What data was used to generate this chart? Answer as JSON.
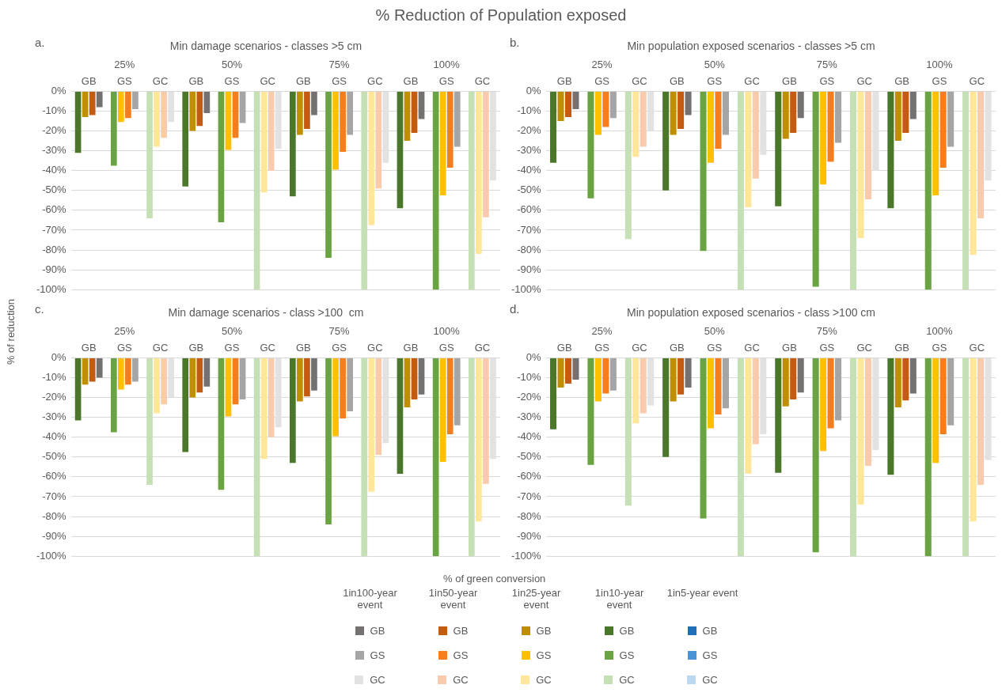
{
  "chart_data": [
    {
      "type": "bar",
      "title": "% Reduction of Population exposed",
      "subtitle": "Min damage scenarios - classes >5 cm",
      "ylabel": "% of reduction",
      "legend": "bottom",
      "grid": "y",
      "annotations": [
        "a.",
        "25%",
        "50%",
        "75%",
        "100%",
        "1in100-year event",
        "1in50-year event",
        "1in25-year event",
        "1in10-year event",
        "1in5-year event"
      ],
      "categories": [
        "GB",
        "GS",
        "GC",
        "GB",
        "GS",
        "GC",
        "GB",
        "GS",
        "GC",
        "GB",
        "GS",
        "GC"
      ],
      "ylim": [
        -100,
        0
      ],
      "yticks": [
        {
          "value": 0,
          "label": "0%"
        },
        {
          "value": -10,
          "label": "-10%"
        },
        {
          "value": -20,
          "label": "-20%"
        },
        {
          "value": -30,
          "label": "-30%"
        },
        {
          "value": -40,
          "label": "-40%"
        },
        {
          "value": -50,
          "label": "-50%"
        },
        {
          "value": -60,
          "label": "-60%"
        },
        {
          "value": -70,
          "label": "-70%"
        },
        {
          "value": -80,
          "label": "-80%"
        },
        {
          "value": -90,
          "label": "-90%"
        },
        {
          "value": -100,
          "label": "-100%"
        }
      ],
      "series": [
        {
          "name": "GB",
          "color": "#767171",
          "values": [
            -8,
            null,
            null,
            -11,
            null,
            null,
            -12,
            null,
            null,
            -14,
            null,
            null
          ]
        },
        {
          "name": "GS",
          "color": "#a5a5a5",
          "values": [
            null,
            -9,
            null,
            null,
            -16,
            null,
            null,
            -22,
            null,
            null,
            -28,
            null
          ]
        },
        {
          "name": "GC",
          "color": "#e2e2e2",
          "values": [
            null,
            null,
            -15.5,
            null,
            null,
            -29,
            null,
            null,
            -36,
            null,
            null,
            -45
          ]
        },
        {
          "name": "GB",
          "color": "#c55a11",
          "values": [
            -12,
            null,
            null,
            -17.5,
            null,
            null,
            -19,
            null,
            null,
            -21,
            null,
            null
          ]
        },
        {
          "name": "GS",
          "color": "#f47d20",
          "values": [
            null,
            -13.5,
            null,
            null,
            -23.5,
            null,
            null,
            -30.5,
            null,
            null,
            -38.5,
            null
          ]
        },
        {
          "name": "GC",
          "color": "#f8cbad",
          "values": [
            null,
            null,
            -23.5,
            null,
            null,
            -40,
            null,
            null,
            -49,
            null,
            null,
            -63.5
          ]
        },
        {
          "name": "GB",
          "color": "#bf8f00",
          "values": [
            -13,
            null,
            null,
            -20,
            null,
            null,
            -22,
            null,
            null,
            -25,
            null,
            null
          ]
        },
        {
          "name": "GS",
          "color": "#ffc000",
          "values": [
            null,
            -15.5,
            null,
            null,
            -29.5,
            null,
            null,
            -39.5,
            null,
            null,
            -52.5,
            null
          ]
        },
        {
          "name": "GC",
          "color": "#ffe699",
          "values": [
            null,
            null,
            -28,
            null,
            null,
            -51,
            null,
            null,
            -67.5,
            null,
            null,
            -82
          ]
        },
        {
          "name": "GB",
          "color": "#4a7729",
          "values": [
            -31,
            null,
            null,
            -48,
            null,
            null,
            -53,
            null,
            null,
            -59,
            null,
            null
          ]
        },
        {
          "name": "GS",
          "color": "#6aa342",
          "values": [
            null,
            -37.5,
            null,
            null,
            -66,
            null,
            null,
            -84,
            null,
            null,
            -100,
            null
          ]
        },
        {
          "name": "GC",
          "color": "#c5e0b4",
          "values": [
            null,
            null,
            -64,
            null,
            null,
            -100,
            null,
            null,
            -100,
            null,
            null,
            -100
          ]
        },
        {
          "name": "GB",
          "color": "#1f6fb8",
          "values": [
            null,
            null,
            null,
            null,
            null,
            null,
            null,
            null,
            null,
            null,
            null,
            null
          ]
        },
        {
          "name": "GS",
          "color": "#4c93d6",
          "values": [
            null,
            null,
            null,
            null,
            null,
            null,
            null,
            null,
            null,
            null,
            null,
            null
          ]
        },
        {
          "name": "GC",
          "color": "#bdd7ee",
          "values": [
            null,
            null,
            null,
            null,
            null,
            null,
            null,
            null,
            null,
            null,
            null,
            null
          ]
        }
      ]
    },
    {
      "type": "bar",
      "subtitle": "Min population exposed scenarios - classes >5 cm",
      "grid": "y",
      "annotations": [
        "b.",
        "25%",
        "50%",
        "75%",
        "100%"
      ],
      "categories": [
        "GB",
        "GS",
        "GC",
        "GB",
        "GS",
        "GC",
        "GB",
        "GS",
        "GC",
        "GB",
        "GS",
        "GC"
      ],
      "ylim": [
        -100,
        0
      ],
      "yticks": [
        {
          "value": 0,
          "label": "0%"
        },
        {
          "value": -10,
          "label": "-10%"
        },
        {
          "value": -20,
          "label": "-20%"
        },
        {
          "value": -30,
          "label": "-30%"
        },
        {
          "value": -40,
          "label": "-40%"
        },
        {
          "value": -50,
          "label": "-50%"
        },
        {
          "value": -60,
          "label": "-60%"
        },
        {
          "value": -70,
          "label": "-70%"
        },
        {
          "value": -80,
          "label": "-80%"
        },
        {
          "value": -90,
          "label": "-90%"
        },
        {
          "value": -100,
          "label": "-100%"
        }
      ],
      "series": [
        {
          "color": "#767171",
          "values": [
            -9,
            null,
            null,
            -12,
            null,
            null,
            -13.5,
            null,
            null,
            -14,
            null,
            null
          ]
        },
        {
          "color": "#a5a5a5",
          "values": [
            null,
            -13.5,
            null,
            null,
            -22,
            null,
            null,
            -26,
            null,
            null,
            -28,
            null
          ]
        },
        {
          "color": "#e2e2e2",
          "values": [
            null,
            null,
            -20,
            null,
            null,
            -32,
            null,
            null,
            -40,
            null,
            null,
            -45
          ]
        },
        {
          "color": "#c55a11",
          "values": [
            -13,
            null,
            null,
            -19,
            null,
            null,
            -21,
            null,
            null,
            -21,
            null,
            null
          ]
        },
        {
          "color": "#f47d20",
          "values": [
            null,
            -18,
            null,
            null,
            -29,
            null,
            null,
            -35.5,
            null,
            null,
            -38.5,
            null
          ]
        },
        {
          "color": "#f8cbad",
          "values": [
            null,
            null,
            -28,
            null,
            null,
            -44,
            null,
            null,
            -54.5,
            null,
            null,
            -64
          ]
        },
        {
          "color": "#bf8f00",
          "values": [
            -15,
            null,
            null,
            -22,
            null,
            null,
            -24,
            null,
            null,
            -25,
            null,
            null
          ]
        },
        {
          "color": "#ffc000",
          "values": [
            null,
            -22,
            null,
            null,
            -36,
            null,
            null,
            -47,
            null,
            null,
            -52.5,
            null
          ]
        },
        {
          "color": "#ffe699",
          "values": [
            null,
            null,
            -33,
            null,
            null,
            -58.5,
            null,
            null,
            -74,
            null,
            null,
            -82.5
          ]
        },
        {
          "color": "#4a7729",
          "values": [
            -36,
            null,
            null,
            -50,
            null,
            null,
            -58,
            null,
            null,
            -59,
            null,
            null
          ]
        },
        {
          "color": "#6aa342",
          "values": [
            null,
            -54,
            null,
            null,
            -80.5,
            null,
            null,
            -98.5,
            null,
            null,
            -100,
            null
          ]
        },
        {
          "color": "#c5e0b4",
          "values": [
            null,
            null,
            -74.5,
            null,
            null,
            -100,
            null,
            null,
            -100,
            null,
            null,
            -100
          ]
        },
        {
          "color": "#1f6fb8",
          "values": [
            null,
            null,
            null,
            null,
            null,
            null,
            null,
            null,
            null,
            null,
            null,
            null
          ]
        },
        {
          "color": "#4c93d6",
          "values": [
            null,
            null,
            null,
            null,
            null,
            null,
            null,
            null,
            null,
            null,
            null,
            null
          ]
        },
        {
          "color": "#bdd7ee",
          "values": [
            null,
            null,
            null,
            null,
            null,
            null,
            null,
            null,
            null,
            null,
            null,
            null
          ]
        }
      ]
    },
    {
      "type": "bar",
      "subtitle": "Min damage scenarios - class >100  cm",
      "xlabel": "% of green conversion",
      "grid": "y",
      "annotations": [
        "c.",
        "25%",
        "50%",
        "75%",
        "100%"
      ],
      "categories": [
        "GB",
        "GS",
        "GC",
        "GB",
        "GS",
        "GC",
        "GB",
        "GS",
        "GC",
        "GB",
        "GS",
        "GC"
      ],
      "ylim": [
        -100,
        0
      ],
      "yticks": [
        {
          "value": 0,
          "label": "0%"
        },
        {
          "value": -10,
          "label": "-10%"
        },
        {
          "value": -20,
          "label": "-20%"
        },
        {
          "value": -30,
          "label": "-30%"
        },
        {
          "value": -40,
          "label": "-40%"
        },
        {
          "value": -50,
          "label": "-50%"
        },
        {
          "value": -60,
          "label": "-60%"
        },
        {
          "value": -70,
          "label": "-70%"
        },
        {
          "value": -80,
          "label": "-80%"
        },
        {
          "value": -90,
          "label": "-90%"
        },
        {
          "value": -100,
          "label": "-100%"
        }
      ],
      "series": [
        {
          "color": "#767171",
          "values": [
            -10,
            null,
            null,
            -14.5,
            null,
            null,
            -16.5,
            null,
            null,
            -18.5,
            null,
            null
          ]
        },
        {
          "color": "#a5a5a5",
          "values": [
            null,
            -12,
            null,
            null,
            -21,
            null,
            null,
            -27,
            null,
            null,
            -34,
            null
          ]
        },
        {
          "color": "#e2e2e2",
          "values": [
            null,
            null,
            -20,
            null,
            null,
            -35,
            null,
            null,
            -43,
            null,
            null,
            -51
          ]
        },
        {
          "color": "#c55a11",
          "values": [
            -12,
            null,
            null,
            -17.5,
            null,
            null,
            -19.5,
            null,
            null,
            -21,
            null,
            null
          ]
        },
        {
          "color": "#f47d20",
          "values": [
            null,
            -13.5,
            null,
            null,
            -23.5,
            null,
            null,
            -30.5,
            null,
            null,
            -38.5,
            null
          ]
        },
        {
          "color": "#f8cbad",
          "values": [
            null,
            null,
            -23.5,
            null,
            null,
            -40,
            null,
            null,
            -49,
            null,
            null,
            -63.5
          ]
        },
        {
          "color": "#bf8f00",
          "values": [
            -13.5,
            null,
            null,
            -20,
            null,
            null,
            -22,
            null,
            null,
            -25,
            null,
            null
          ]
        },
        {
          "color": "#ffc000",
          "values": [
            null,
            -16,
            null,
            null,
            -29.5,
            null,
            null,
            -39.5,
            null,
            null,
            -52.5,
            null
          ]
        },
        {
          "color": "#ffe699",
          "values": [
            null,
            null,
            -28,
            null,
            null,
            -51,
            null,
            null,
            -67.5,
            null,
            null,
            -82.5
          ]
        },
        {
          "color": "#4a7729",
          "values": [
            -31.5,
            null,
            null,
            -47.5,
            null,
            null,
            -53,
            null,
            null,
            -58.5,
            null,
            null
          ]
        },
        {
          "color": "#6aa342",
          "values": [
            null,
            -37.5,
            null,
            null,
            -66.5,
            null,
            null,
            -84,
            null,
            null,
            -100,
            null
          ]
        },
        {
          "color": "#c5e0b4",
          "values": [
            null,
            null,
            -64,
            null,
            null,
            -100,
            null,
            null,
            -100,
            null,
            null,
            -100
          ]
        },
        {
          "color": "#1f6fb8",
          "values": [
            null,
            null,
            null,
            null,
            null,
            null,
            null,
            null,
            null,
            null,
            null,
            null
          ]
        },
        {
          "color": "#4c93d6",
          "values": [
            null,
            null,
            null,
            null,
            null,
            null,
            null,
            null,
            null,
            null,
            null,
            null
          ]
        },
        {
          "color": "#bdd7ee",
          "values": [
            null,
            null,
            null,
            null,
            null,
            null,
            null,
            null,
            null,
            null,
            null,
            null
          ]
        }
      ]
    },
    {
      "type": "bar",
      "subtitle": "Min population exposed scenarios - class >100 cm",
      "grid": "y",
      "annotations": [
        "d.",
        "25%",
        "50%",
        "75%",
        "100%"
      ],
      "categories": [
        "GB",
        "GS",
        "GC",
        "GB",
        "GS",
        "GC",
        "GB",
        "GS",
        "GC",
        "GB",
        "GS",
        "GC"
      ],
      "ylim": [
        -100,
        0
      ],
      "yticks": [
        {
          "value": 0,
          "label": "0%"
        },
        {
          "value": -10,
          "label": "-10%"
        },
        {
          "value": -20,
          "label": "-20%"
        },
        {
          "value": -30,
          "label": "-30%"
        },
        {
          "value": -40,
          "label": "-40%"
        },
        {
          "value": -50,
          "label": "-50%"
        },
        {
          "value": -60,
          "label": "-60%"
        },
        {
          "value": -70,
          "label": "-70%"
        },
        {
          "value": -80,
          "label": "-80%"
        },
        {
          "value": -90,
          "label": "-90%"
        },
        {
          "value": -100,
          "label": "-100%"
        }
      ],
      "series": [
        {
          "color": "#767171",
          "values": [
            -11,
            null,
            null,
            -15,
            null,
            null,
            -17.5,
            null,
            null,
            -18,
            null,
            null
          ]
        },
        {
          "color": "#a5a5a5",
          "values": [
            null,
            -16.5,
            null,
            null,
            -25.5,
            null,
            null,
            -31.5,
            null,
            null,
            -34,
            null
          ]
        },
        {
          "color": "#e2e2e2",
          "values": [
            null,
            null,
            -24,
            null,
            null,
            -38.5,
            null,
            null,
            -46.5,
            null,
            null,
            -51.5
          ]
        },
        {
          "color": "#c55a11",
          "values": [
            -13,
            null,
            null,
            -18.5,
            null,
            null,
            -21,
            null,
            null,
            -21.5,
            null,
            null
          ]
        },
        {
          "color": "#f47d20",
          "values": [
            null,
            -18,
            null,
            null,
            -28.5,
            null,
            null,
            -35.5,
            null,
            null,
            -38.5,
            null
          ]
        },
        {
          "color": "#f8cbad",
          "values": [
            null,
            null,
            -28,
            null,
            null,
            -43.5,
            null,
            null,
            -54.5,
            null,
            null,
            -64
          ]
        },
        {
          "color": "#bf8f00",
          "values": [
            -15,
            null,
            null,
            -22,
            null,
            null,
            -24.5,
            null,
            null,
            -25,
            null,
            null
          ]
        },
        {
          "color": "#ffc000",
          "values": [
            null,
            -22,
            null,
            null,
            -35.5,
            null,
            null,
            -47,
            null,
            null,
            -53,
            null
          ]
        },
        {
          "color": "#ffe699",
          "values": [
            null,
            null,
            -33,
            null,
            null,
            -58.5,
            null,
            null,
            -74,
            null,
            null,
            -82.5
          ]
        },
        {
          "color": "#4a7729",
          "values": [
            -36,
            null,
            null,
            -50,
            null,
            null,
            -58,
            null,
            null,
            -59,
            null,
            null
          ]
        },
        {
          "color": "#6aa342",
          "values": [
            null,
            -54,
            null,
            null,
            -81,
            null,
            null,
            -98,
            null,
            null,
            -100,
            null
          ]
        },
        {
          "color": "#c5e0b4",
          "values": [
            null,
            null,
            -74.5,
            null,
            null,
            -100,
            null,
            null,
            -100,
            null,
            null,
            -100
          ]
        },
        {
          "color": "#1f6fb8",
          "values": [
            null,
            null,
            null,
            null,
            null,
            null,
            null,
            null,
            null,
            null,
            null,
            null
          ]
        },
        {
          "color": "#4c93d6",
          "values": [
            null,
            null,
            null,
            null,
            null,
            null,
            null,
            null,
            null,
            null,
            null,
            null
          ]
        },
        {
          "color": "#bdd7ee",
          "values": [
            null,
            null,
            null,
            null,
            null,
            null,
            null,
            null,
            null,
            null,
            null,
            null
          ]
        }
      ]
    }
  ]
}
